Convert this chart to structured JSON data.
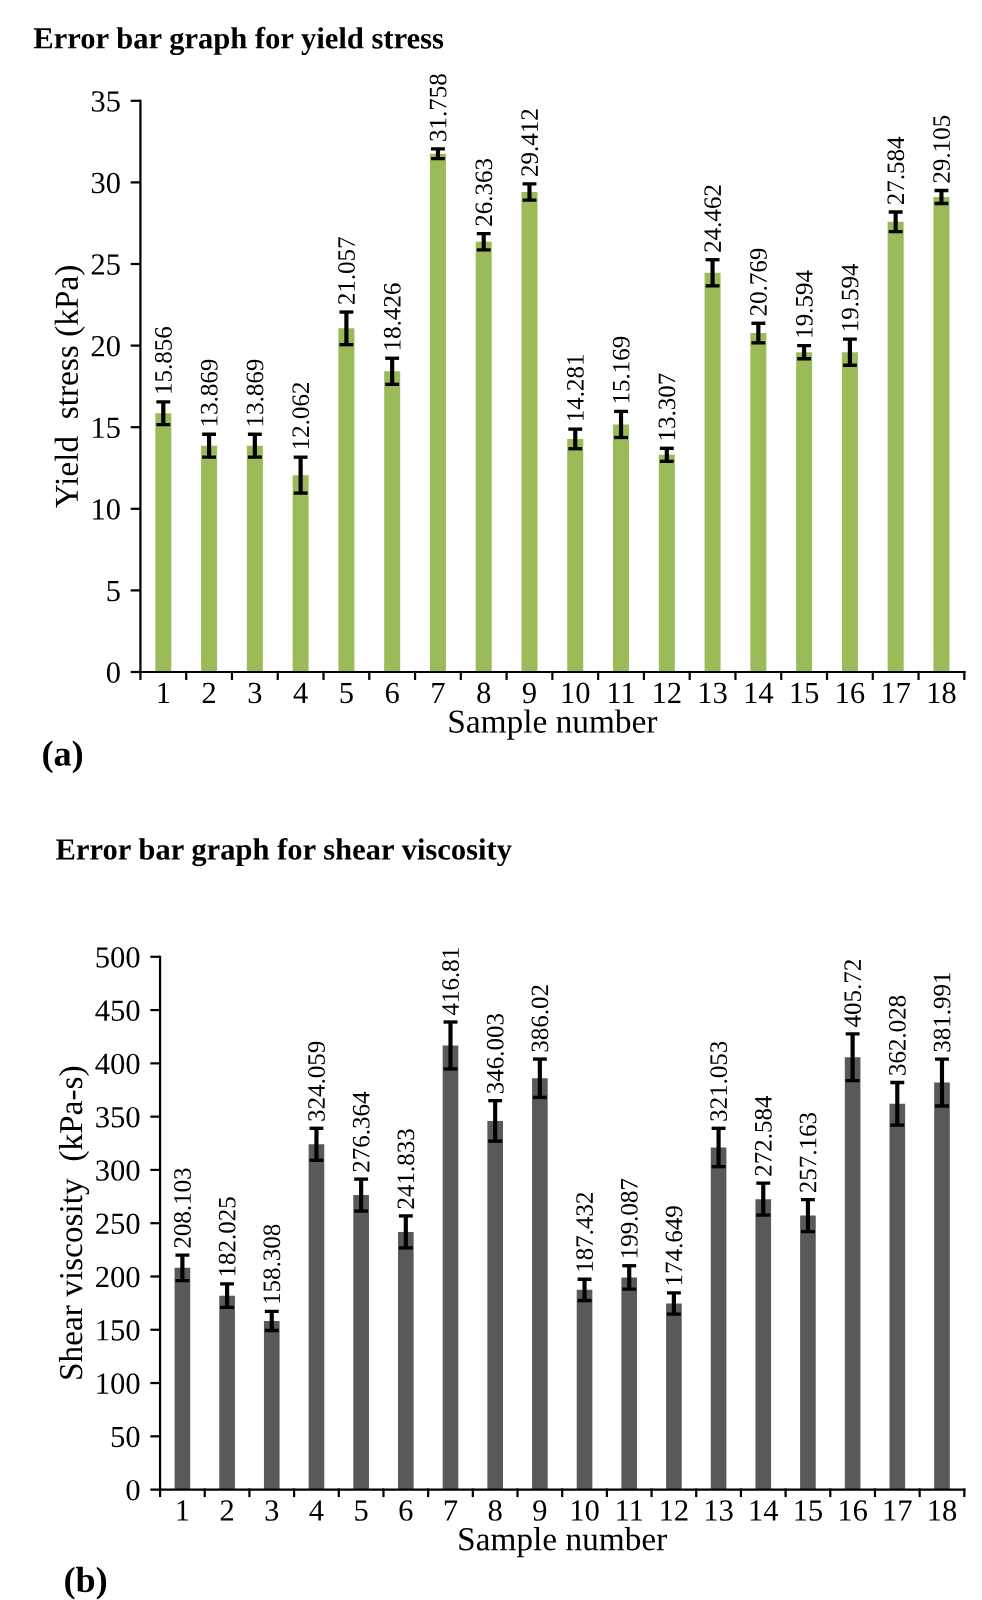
{
  "chart_data": [
    {
      "type": "bar",
      "title": "Error bar graph for yield stress",
      "xlabel": "Sample number",
      "ylabel": "Yield  stress (kPa)",
      "annotations": [
        "(a)"
      ],
      "categories": [
        "1",
        "2",
        "3",
        "4",
        "5",
        "6",
        "7",
        "8",
        "9",
        "10",
        "11",
        "12",
        "13",
        "14",
        "15",
        "16",
        "17",
        "18"
      ],
      "values": [
        15.856,
        13.869,
        13.869,
        12.062,
        21.057,
        18.426,
        31.758,
        26.363,
        29.412,
        14.281,
        15.169,
        13.307,
        24.462,
        20.769,
        19.594,
        19.594,
        27.584,
        29.105
      ],
      "errors": [
        0.7,
        0.7,
        0.7,
        1.1,
        1.0,
        0.8,
        0.3,
        0.5,
        0.5,
        0.6,
        0.8,
        0.4,
        0.8,
        0.6,
        0.4,
        0.8,
        0.6,
        0.4
      ],
      "color": "#9bbb59",
      "data_labels": true,
      "ylim": [
        0,
        35
      ],
      "yticks": [
        0,
        5,
        10,
        15,
        20,
        25,
        30,
        35
      ],
      "grid": false,
      "legend": false
    },
    {
      "type": "bar",
      "title": "Error bar graph for shear viscosity",
      "xlabel": "Sample number",
      "ylabel": "Shear viscosity  (kPa-s)",
      "annotations": [
        "(b)"
      ],
      "categories": [
        "1",
        "2",
        "3",
        "4",
        "5",
        "6",
        "7",
        "8",
        "9",
        "10",
        "11",
        "12",
        "13",
        "14",
        "15",
        "16",
        "17",
        "18"
      ],
      "values": [
        208.103,
        182.025,
        158.308,
        324.059,
        276.364,
        241.833,
        416.81,
        346.003,
        386.02,
        187.432,
        199.087,
        174.649,
        321.053,
        272.584,
        257.163,
        405.72,
        362.028,
        381.991
      ],
      "errors": [
        12,
        11,
        9,
        15,
        15,
        15,
        22,
        19,
        18,
        10,
        11,
        10,
        18,
        15,
        15,
        22,
        20,
        22
      ],
      "color": "#595959",
      "data_labels": true,
      "ylim": [
        0,
        500
      ],
      "yticks": [
        0,
        50,
        100,
        150,
        200,
        250,
        300,
        350,
        400,
        450,
        500
      ],
      "grid": false,
      "legend": false
    }
  ]
}
